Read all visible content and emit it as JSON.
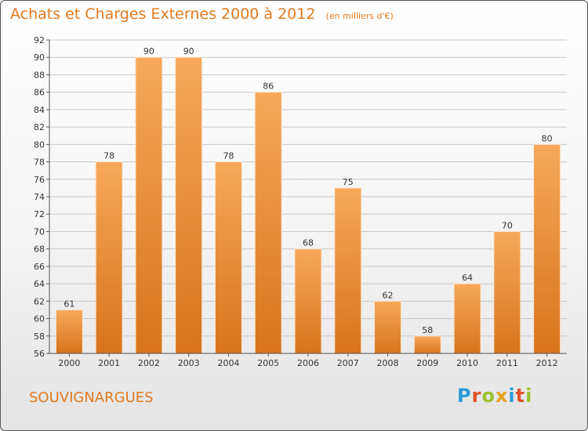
{
  "header": {
    "title": "Achats et Charges Externes 2000 à 2012",
    "unit": "(en milliers d'€)"
  },
  "footer": {
    "commune": "SOUVIGNARGUES",
    "brand": "Proxiti"
  },
  "colors": {
    "title": "#e07a1f",
    "bar_light": "#f7a85a",
    "bar_dark": "#d8741d",
    "grid": "#c8c8c8",
    "brand_letters": [
      "#2a9bd6",
      "#e0522a",
      "#9ac12b",
      "#e2a11b",
      "#2a9bd6",
      "#e0522a",
      "#9ac12b"
    ]
  },
  "chart_data": {
    "type": "bar",
    "title": "Achats et Charges Externes 2000 à 2012",
    "subtitle": "(en milliers d'€)",
    "categories": [
      "2000",
      "2001",
      "2002",
      "2003",
      "2004",
      "2005",
      "2006",
      "2007",
      "2008",
      "2009",
      "2010",
      "2011",
      "2012"
    ],
    "values": [
      61,
      78,
      90,
      90,
      78,
      86,
      68,
      75,
      62,
      58,
      64,
      70,
      80
    ],
    "ylim": [
      56,
      92
    ],
    "yticks": [
      56,
      58,
      60,
      62,
      64,
      66,
      68,
      70,
      72,
      74,
      76,
      78,
      80,
      82,
      84,
      86,
      88,
      90,
      92
    ],
    "grid": true,
    "xlabel": "",
    "ylabel": ""
  }
}
